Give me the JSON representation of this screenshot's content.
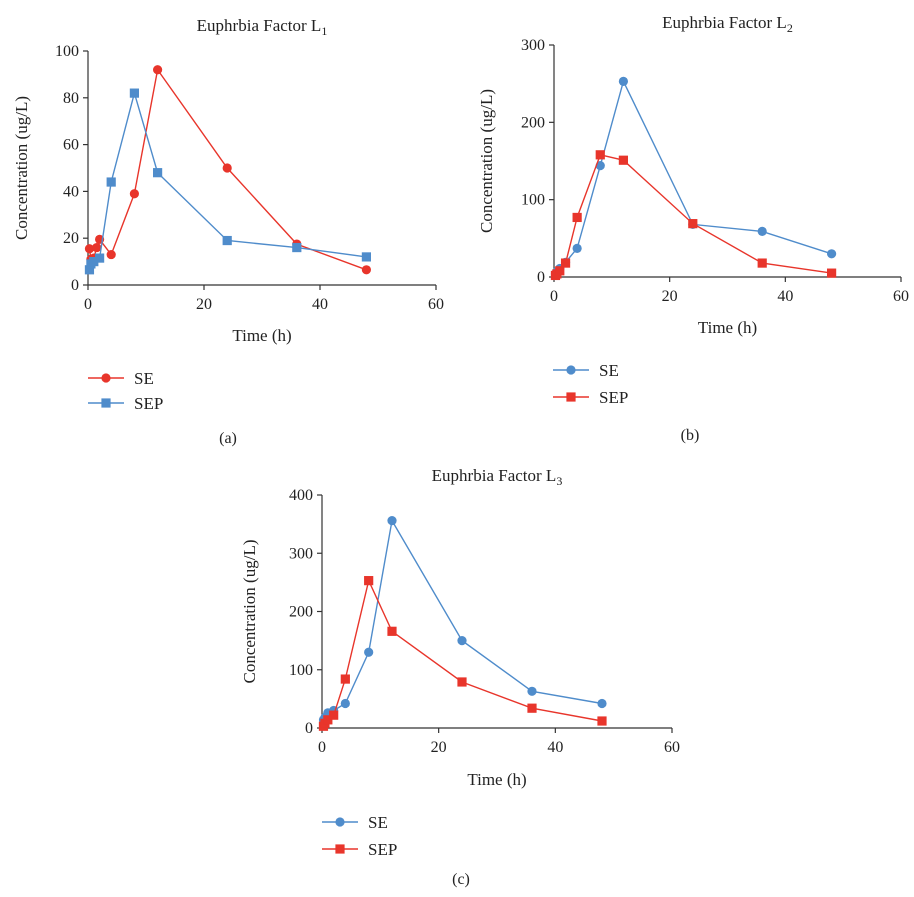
{
  "colors": {
    "se_red": "#e8352b",
    "sep_blue": "#4f8ccb",
    "se_blue": "#4f8ccb",
    "sep_red": "#e8352b",
    "axis": "#333333"
  },
  "chart_data": [
    {
      "panel": "(a)",
      "type": "line",
      "title": "Euphrbia Factor L",
      "title_sub": "1",
      "xlabel": "Time (h)",
      "ylabel": "Concentration (ug/L)",
      "xlim": [
        0,
        60
      ],
      "ylim": [
        0,
        100
      ],
      "xticks": [
        0,
        20,
        40,
        60
      ],
      "yticks": [
        0,
        20,
        40,
        60,
        80,
        100
      ],
      "grid": false,
      "legend_position": "bottom-left",
      "series": [
        {
          "name": "SE",
          "color": "#e8352b",
          "marker": "circle",
          "x": [
            0.25,
            0.5,
            1,
            1.5,
            2,
            4,
            8,
            12,
            24,
            36,
            48
          ],
          "y": [
            15.5,
            11,
            11.5,
            16,
            19.5,
            13,
            39,
            92,
            50,
            17.5,
            6.5
          ]
        },
        {
          "name": "SEP",
          "color": "#4f8ccb",
          "marker": "square",
          "x": [
            0.25,
            0.5,
            1,
            2,
            4,
            8,
            12,
            24,
            36,
            48
          ],
          "y": [
            6.5,
            9,
            10,
            11.5,
            44,
            82,
            48,
            19,
            16,
            12
          ]
        }
      ]
    },
    {
      "panel": "(b)",
      "type": "line",
      "title": "Euphrbia Factor L",
      "title_sub": "2",
      "xlabel": "Time (h)",
      "ylabel": "Concentration (ug/L)",
      "xlim": [
        0,
        60
      ],
      "ylim": [
        0,
        300
      ],
      "xticks": [
        0,
        20,
        40,
        60
      ],
      "yticks": [
        0,
        100,
        200,
        300
      ],
      "grid": false,
      "legend_position": "bottom-left",
      "series": [
        {
          "name": "SE",
          "color": "#4f8ccb",
          "marker": "circle",
          "x": [
            0.25,
            0.5,
            1,
            2,
            4,
            8,
            12,
            24,
            36,
            48
          ],
          "y": [
            4,
            7,
            11,
            19,
            37,
            144,
            253,
            68,
            59,
            30
          ]
        },
        {
          "name": "SEP",
          "color": "#e8352b",
          "marker": "square",
          "x": [
            0.25,
            0.5,
            1,
            2,
            4,
            8,
            12,
            24,
            36,
            48
          ],
          "y": [
            2,
            4,
            8,
            18,
            77,
            158,
            151,
            69,
            18,
            5
          ]
        }
      ]
    },
    {
      "panel": "(c)",
      "type": "line",
      "title": "Euphrbia Factor L",
      "title_sub": "3",
      "xlabel": "Time (h)",
      "ylabel": "Concentration (ug/L)",
      "xlim": [
        0,
        60
      ],
      "ylim": [
        0,
        400
      ],
      "xticks": [
        0,
        20,
        40,
        60
      ],
      "yticks": [
        0,
        100,
        200,
        300,
        400
      ],
      "grid": false,
      "legend_position": "bottom-left",
      "series": [
        {
          "name": "SE",
          "color": "#4f8ccb",
          "marker": "circle",
          "x": [
            0.25,
            0.5,
            1,
            2,
            4,
            8,
            12,
            24,
            36,
            48
          ],
          "y": [
            14,
            18,
            26,
            30,
            42,
            130,
            356,
            150,
            63,
            42
          ]
        },
        {
          "name": "SEP",
          "color": "#e8352b",
          "marker": "square",
          "x": [
            0.25,
            0.5,
            1,
            2,
            4,
            8,
            12,
            24,
            36,
            48
          ],
          "y": [
            3,
            8,
            14,
            22,
            84,
            253,
            166,
            79,
            34,
            12
          ]
        }
      ]
    }
  ]
}
